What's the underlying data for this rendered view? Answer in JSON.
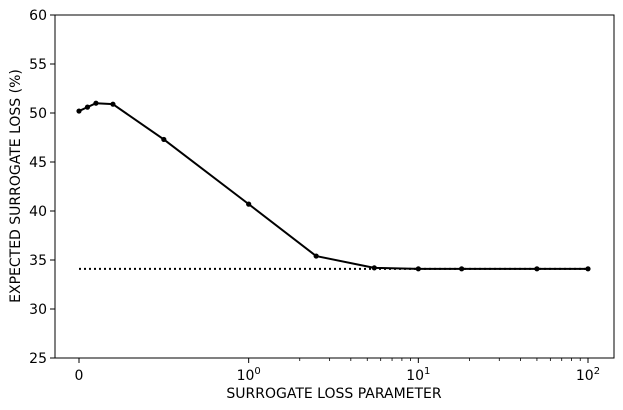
{
  "chart_data": {
    "type": "line",
    "title": "",
    "xlabel": "SURROGATE LOSS PARAMETER",
    "ylabel": "EXPECTED SURROGATE LOSS (%)",
    "xscale": "symlog",
    "ylim": [
      25,
      60
    ],
    "yticks": [
      "25",
      "30",
      "35",
      "40",
      "45",
      "50",
      "55",
      "60"
    ],
    "xticks": [
      {
        "value": 0,
        "base": "0",
        "exp": ""
      },
      {
        "value": 1,
        "base": "10",
        "exp": "0"
      },
      {
        "value": 10,
        "base": "10",
        "exp": "1"
      },
      {
        "value": 100,
        "base": "10",
        "exp": "2"
      }
    ],
    "grid": false,
    "series": [
      {
        "style": "solid-with-markers",
        "color": "#000000",
        "x": [
          0,
          0.05,
          0.1,
          0.2,
          0.5,
          1,
          2.5,
          5.5,
          10,
          18,
          50,
          100
        ],
        "y": [
          50.2,
          50.6,
          51.0,
          50.9,
          47.3,
          40.7,
          35.4,
          34.2,
          34.1,
          34.1,
          34.1,
          34.1
        ]
      },
      {
        "style": "dotted",
        "color": "#000000",
        "x": [
          0,
          100
        ],
        "y": [
          34.1,
          34.1
        ]
      }
    ]
  }
}
